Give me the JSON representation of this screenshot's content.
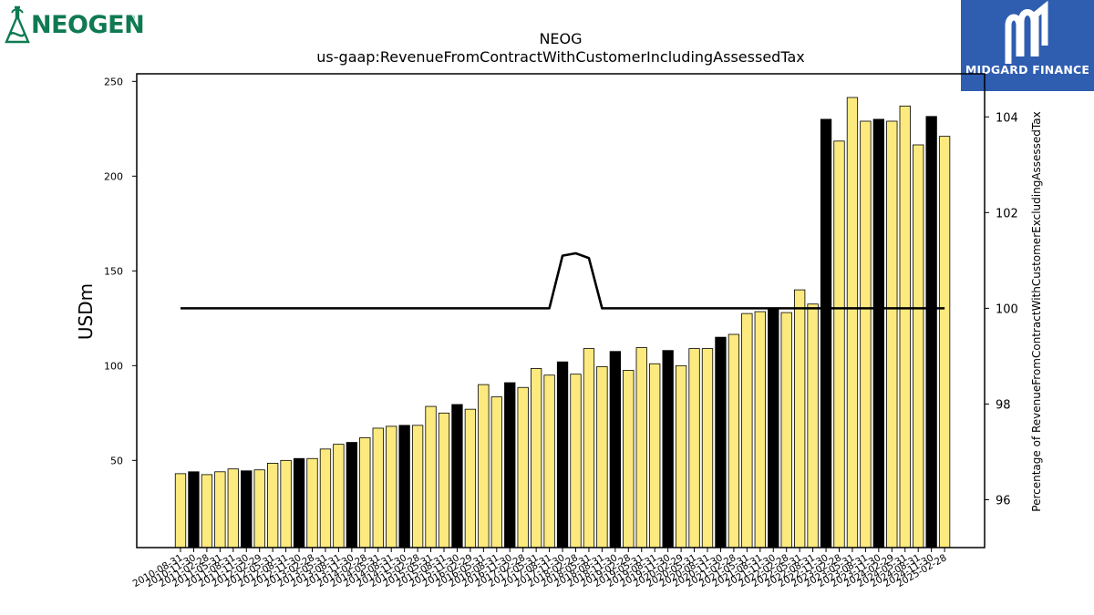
{
  "brand": {
    "left_logo": "NEOGEN",
    "left_logo_mark": "®",
    "right_logo": "MIDGARD FINANCE"
  },
  "icons": {
    "left": "neogen-flask-icon",
    "right": "midgard-m-icon"
  },
  "colors": {
    "bar_default": "#fcea7f",
    "bar_highlight": "#000000",
    "line": "#000000",
    "midgard_bg": "#2f5db0",
    "neogen_green": "#0f7a52"
  },
  "chart_data": {
    "type": "bar",
    "title": "NEOG",
    "subtitle": "us-gaap:RevenueFromContractWithCustomerIncludingAssessedTax",
    "ylabel": "USDm",
    "y2label": "Percentage of RevenueFromContractWithCustomerExcludingAssessedTax",
    "ylim": [
      4,
      254
    ],
    "y2lim": [
      95,
      104.9
    ],
    "yticks": [
      50,
      100,
      150,
      200,
      250
    ],
    "y2ticks": [
      96,
      98,
      100,
      102,
      104
    ],
    "x_tick_labels": [
      "2010-08-31",
      "2010-11-30",
      "2011-02-28",
      "2011-05-31",
      "2011-08-31",
      "2011-11-30",
      "2012-02-29",
      "2012-05-31",
      "2012-08-31",
      "2012-11-30",
      "2013-02-28",
      "2013-05-31",
      "2013-08-31",
      "2013-11-30",
      "2014-02-28",
      "2014-05-31",
      "2014-08-31",
      "2014-11-30",
      "2015-02-28",
      "2015-05-31",
      "2015-08-31",
      "2015-11-30",
      "2016-02-29",
      "2016-05-31",
      "2016-08-31",
      "2016-11-30",
      "2017-02-28",
      "2017-05-31",
      "2017-08-31",
      "2017-11-30",
      "2018-02-28",
      "2018-05-31",
      "2018-08-31",
      "2018-11-30",
      "2019-02-28",
      "2019-05-31",
      "2019-08-31",
      "2019-11-30",
      "2020-02-29",
      "2020-05-31",
      "2020-08-31",
      "2020-11-30",
      "2021-02-28",
      "2021-05-31",
      "2021-08-31",
      "2021-11-30",
      "2022-02-28",
      "2022-05-31",
      "2022-08-31",
      "2022-11-30",
      "2023-02-28",
      "2023-05-31",
      "2023-08-31",
      "2023-11-30",
      "2024-02-29",
      "2024-05-31",
      "2024-08-31",
      "2024-11-30",
      "2025-02-28"
    ],
    "values": [
      43,
      44,
      42.5,
      44,
      45.5,
      44.5,
      45,
      48.5,
      50,
      51,
      51,
      56,
      58.5,
      59.5,
      62,
      67,
      68,
      68.5,
      68.5,
      78.5,
      75,
      79.5,
      77,
      90,
      83.5,
      91,
      88.5,
      98.5,
      95,
      102,
      95.5,
      109,
      99.5,
      107.5,
      97.5,
      109.5,
      101,
      108,
      100,
      109,
      109,
      115,
      116.5,
      127.5,
      128.5,
      130.5,
      128,
      140,
      132.5,
      230,
      218.5,
      241.5,
      229,
      230,
      229,
      237,
      216.5,
      231.5,
      221
    ],
    "highlight": [
      false,
      true,
      false,
      false,
      false,
      true,
      false,
      false,
      false,
      true,
      false,
      false,
      false,
      true,
      false,
      false,
      false,
      true,
      false,
      false,
      false,
      true,
      false,
      false,
      false,
      true,
      false,
      false,
      false,
      true,
      false,
      false,
      false,
      true,
      false,
      false,
      false,
      true,
      false,
      false,
      false,
      true,
      false,
      false,
      false,
      true,
      false,
      false,
      false,
      true,
      false,
      false,
      false,
      true,
      false,
      false,
      false,
      true,
      false
    ],
    "series": [
      {
        "axis": "right",
        "type": "line",
        "values": [
          100,
          100,
          100,
          100,
          100,
          100,
          100,
          100,
          100,
          100,
          100,
          100,
          100,
          100,
          100,
          100,
          100,
          100,
          100,
          100,
          100,
          100,
          100,
          100,
          100,
          100,
          100,
          100,
          100,
          101.1,
          101.15,
          101.05,
          100,
          100,
          100,
          100,
          100,
          100,
          100,
          100,
          100,
          100,
          100,
          100,
          100,
          100,
          100,
          100,
          100,
          100,
          100,
          100,
          100,
          100,
          100,
          100,
          100,
          100,
          100
        ]
      }
    ],
    "grid": false
  }
}
